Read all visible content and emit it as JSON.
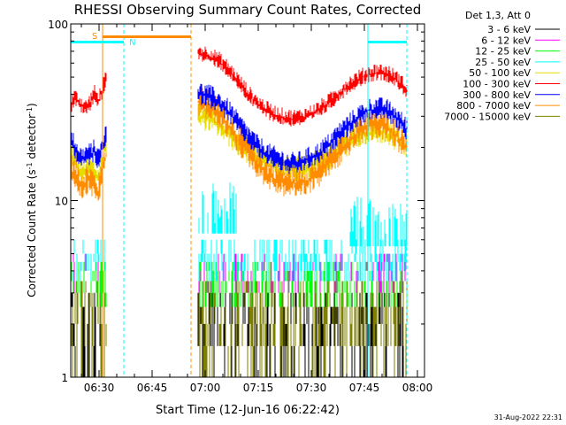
{
  "chart_data": {
    "type": "line",
    "title": "RHESSI Observing Summary Count Rates, Corrected",
    "xlabel": "Start Time (12-Jun-16 06:22:42)",
    "ylabel_parts": [
      "Corrected Count Rate (s",
      "-1",
      " detector",
      "-1",
      ")"
    ],
    "ylim": [
      1,
      100
    ],
    "ylog": true,
    "xlim": [
      "06:22",
      "08:02"
    ],
    "x_ticks": [
      "06:30",
      "06:45",
      "07:00",
      "07:15",
      "07:30",
      "07:45",
      "08:00"
    ],
    "y_ticks": [
      "1",
      "10",
      "100"
    ],
    "legend_header": "Det 1,3, Att 0",
    "legend_position": "right",
    "series": [
      {
        "name": "3 - 6 keV",
        "color": "#000000"
      },
      {
        "name": "6 - 12 keV",
        "color": "#ff00ff"
      },
      {
        "name": "12 - 25 keV",
        "color": "#00ff00"
      },
      {
        "name": "25 - 50 keV",
        "color": "#00ffff"
      },
      {
        "name": "50 - 100 keV",
        "color": "#e6dc00"
      },
      {
        "name": "100 - 300 keV",
        "color": "#ff0000"
      },
      {
        "name": "300 - 800 keV",
        "color": "#0000ff"
      },
      {
        "name": "800 - 7000 keV",
        "color": "#ff8c00"
      },
      {
        "name": "7000 - 15000 keV",
        "color": "#808000"
      }
    ],
    "data_segments": [
      {
        "start": "06:22",
        "end": "06:32",
        "red": [
          34,
          38,
          36,
          34,
          33,
          36,
          40,
          36,
          42,
          48
        ],
        "blue": [
          22,
          20,
          18,
          17,
          18,
          18,
          19,
          17,
          20,
          24
        ],
        "orange": [
          15,
          14,
          13,
          12,
          13,
          13,
          12,
          11,
          14,
          18
        ],
        "yellow": [
          18,
          17,
          15,
          14,
          15,
          15,
          14,
          13,
          16,
          21
        ]
      },
      {
        "start": "06:58",
        "end": "07:57",
        "red": [
          68,
          66,
          62,
          55,
          47,
          40,
          35,
          32,
          30,
          29,
          29,
          30,
          32,
          35,
          39,
          44,
          48,
          51,
          53,
          52,
          48,
          42
        ],
        "blue": [
          40,
          39,
          36,
          32,
          27,
          23,
          20,
          18,
          17,
          16,
          16,
          17,
          18,
          20,
          23,
          26,
          29,
          32,
          33,
          32,
          29,
          25
        ],
        "orange": [
          36,
          34,
          31,
          27,
          22,
          19,
          16,
          14,
          13,
          12.5,
          12.5,
          13,
          14,
          16,
          18,
          21,
          24,
          26,
          27,
          26,
          23,
          20
        ],
        "yellow": [
          30,
          29,
          27,
          24,
          21,
          19,
          17,
          16,
          15,
          15,
          15,
          15,
          16,
          17,
          19,
          21,
          23,
          24,
          25,
          24,
          22,
          20
        ]
      }
    ],
    "annotations": [
      {
        "label": "S",
        "color": "#ff8c00",
        "time": "06:31",
        "end": "06:56"
      },
      {
        "label": "N",
        "color": "#00ffff",
        "time": "06:37"
      }
    ],
    "cyan_bars": [
      {
        "start": "06:22",
        "end": "06:37"
      },
      {
        "start": "07:46",
        "end": "07:57"
      }
    ],
    "vlines": [
      {
        "time": "06:31",
        "color": "#ff8c00",
        "style": "solid"
      },
      {
        "time": "06:37",
        "color": "#00ffff",
        "style": "dashed"
      },
      {
        "time": "06:56",
        "color": "#ff8c00",
        "style": "dashed"
      },
      {
        "time": "07:46",
        "color": "#00ffff",
        "style": "solid"
      },
      {
        "time": "07:57",
        "color": "#00ffff",
        "style": "dashed"
      }
    ],
    "timestamp": "31-Aug-2022 22:31"
  }
}
